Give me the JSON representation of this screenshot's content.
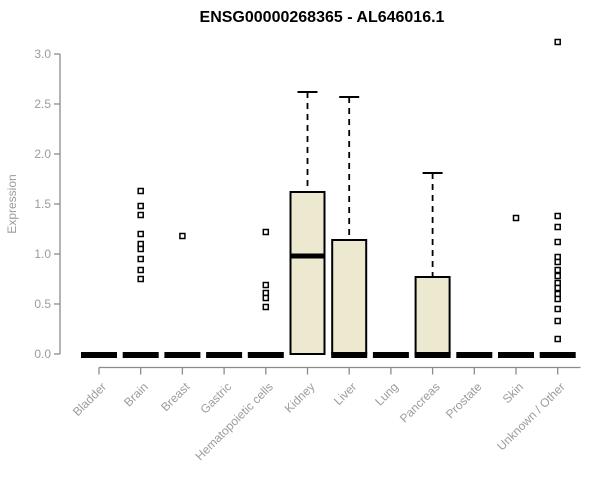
{
  "page": {
    "background": "#ffffff"
  },
  "chart_data": {
    "type": "boxplot",
    "title": "ENSG00000268365 - AL646016.1",
    "xlabel": "",
    "ylabel": "Expression",
    "ylim": [
      0,
      3.15
    ],
    "yticks": [
      "0.0",
      "0.5",
      "1.0",
      "1.5",
      "2.0",
      "2.5",
      "3.0"
    ],
    "grid": false,
    "legend": null,
    "categories": [
      "Bladder",
      "Brain",
      "Breast",
      "Gastric",
      "Hematopoietic cells",
      "Kidney",
      "Liver",
      "Lung",
      "Pancreas",
      "Prostate",
      "Skin",
      "Unknown / Other"
    ],
    "boxes": [
      {
        "category": "Bladder",
        "whisker_low": 0,
        "q1": 0,
        "median": 0,
        "q3": 0,
        "whisker_high": 0,
        "outliers": []
      },
      {
        "category": "Brain",
        "whisker_low": 0,
        "q1": 0,
        "median": 0,
        "q3": 0,
        "whisker_high": 0,
        "outliers": [
          1.63,
          1.48,
          1.39,
          1.2,
          1.1,
          1.05,
          0.95,
          0.84,
          0.75
        ]
      },
      {
        "category": "Breast",
        "whisker_low": 0,
        "q1": 0,
        "median": 0,
        "q3": 0,
        "whisker_high": 0,
        "outliers": [
          1.18
        ]
      },
      {
        "category": "Gastric",
        "whisker_low": 0,
        "q1": 0,
        "median": 0,
        "q3": 0,
        "whisker_high": 0,
        "outliers": []
      },
      {
        "category": "Hematopoietic cells",
        "whisker_low": 0,
        "q1": 0,
        "median": 0,
        "q3": 0,
        "whisker_high": 0,
        "outliers": [
          1.22,
          0.69,
          0.61,
          0.56,
          0.47
        ]
      },
      {
        "category": "Kidney",
        "whisker_low": 0,
        "q1": 0,
        "median": 0.98,
        "q3": 1.62,
        "whisker_high": 2.62,
        "outliers": []
      },
      {
        "category": "Liver",
        "whisker_low": 0,
        "q1": 0,
        "median": 0,
        "q3": 1.14,
        "whisker_high": 2.57,
        "outliers": []
      },
      {
        "category": "Lung",
        "whisker_low": 0,
        "q1": 0,
        "median": 0,
        "q3": 0,
        "whisker_high": 0,
        "outliers": []
      },
      {
        "category": "Pancreas",
        "whisker_low": 0,
        "q1": 0,
        "median": 0,
        "q3": 0.77,
        "whisker_high": 1.81,
        "outliers": []
      },
      {
        "category": "Prostate",
        "whisker_low": 0,
        "q1": 0,
        "median": 0,
        "q3": 0,
        "whisker_high": 0,
        "outliers": []
      },
      {
        "category": "Skin",
        "whisker_low": 0,
        "q1": 0,
        "median": 0,
        "q3": 0,
        "whisker_high": 0,
        "outliers": [
          1.36
        ]
      },
      {
        "category": "Unknown / Other",
        "whisker_low": 0,
        "q1": 0,
        "median": 0,
        "q3": 0,
        "whisker_high": 0,
        "outliers": [
          3.12,
          1.38,
          1.27,
          1.12,
          0.97,
          0.92,
          0.84,
          0.78,
          0.71,
          0.66,
          0.6,
          0.55,
          0.45,
          0.33,
          0.15
        ]
      }
    ],
    "colors": {
      "box_fill": "#EDE8D0",
      "box_stroke": "#000000",
      "median": "#000000",
      "whisker": "#000000",
      "axis_line": "#8C8C8C",
      "tick_label": "#9C9C9C",
      "axis_label": "#9C9C9C",
      "title": "#000000",
      "outlier_stroke": "#000000",
      "outlier_fill": "#FFFFFF"
    }
  }
}
